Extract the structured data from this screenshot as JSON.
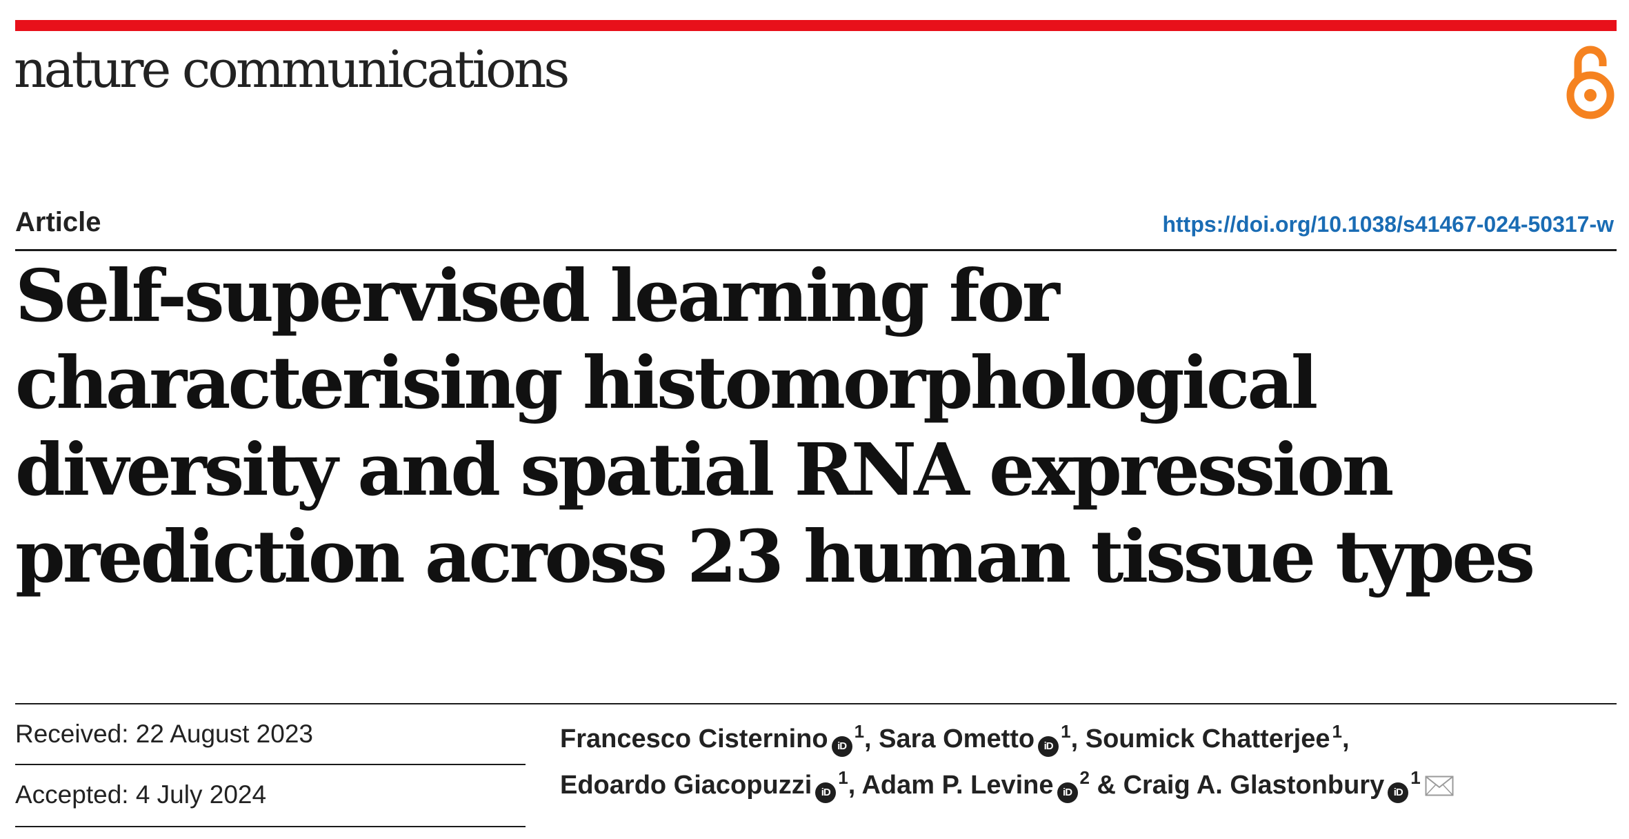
{
  "journal": {
    "name": "nature communications",
    "brand_color": "#e8101a",
    "open_access_icon": "open-access-lock-icon",
    "open_access_color": "#f58220"
  },
  "article": {
    "type": "Article",
    "doi": "https://doi.org/10.1038/s41467-024-50317-w",
    "doi_color": "#1a6cb4",
    "title": "Self-supervised learning for characterising histomorphological diversity and spatial RNA expression prediction across 23 human tissue types"
  },
  "dates": {
    "received": "Received: 22 August 2023",
    "accepted": "Accepted: 4 July 2024"
  },
  "authors": [
    {
      "name": "Francesco Cisternino",
      "orcid": true,
      "affiliation": "1",
      "sep": ", "
    },
    {
      "name": "Sara Ometto",
      "orcid": true,
      "affiliation": "1",
      "sep": ", "
    },
    {
      "name": "Soumick Chatterjee",
      "orcid": false,
      "affiliation": "1",
      "sep": ","
    },
    {
      "name": "Edoardo Giacopuzzi",
      "orcid": true,
      "affiliation": "1",
      "sep": ", "
    },
    {
      "name": "Adam P. Levine",
      "orcid": true,
      "affiliation": "2",
      "sep": " & "
    },
    {
      "name": "Craig A. Glastonbury",
      "orcid": true,
      "affiliation": "1",
      "sep": "",
      "corresponding": true
    }
  ],
  "icons": {
    "orcid": "orcid-icon",
    "orcid_label": "iD",
    "corresponding": "envelope-icon"
  }
}
